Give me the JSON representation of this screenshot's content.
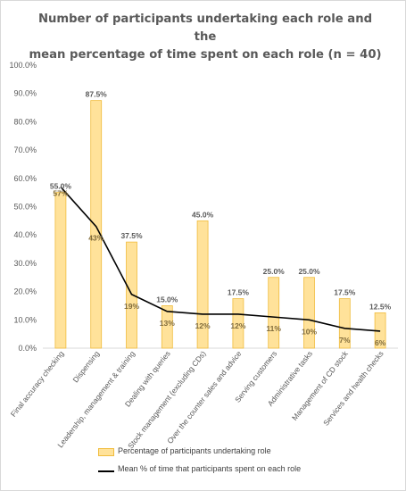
{
  "chart_data": {
    "type": "bar",
    "title_line1": "Number of participants undertaking each role and the",
    "title_line2": "mean percentage of time spent on each role (n = 40)",
    "categories": [
      "Final accuracy checking",
      "Dispensing",
      "Leadership, management  & training",
      "Dealing with queries",
      "Stock management (excluding CDs)",
      "Over the counter sales and advice",
      "Serving customers",
      "Administrative tasks",
      "Management of CD stock",
      "Services and health checks"
    ],
    "series": [
      {
        "name": "Percentage of participants undertaking role",
        "type": "bar",
        "values": [
          55.0,
          87.5,
          37.5,
          15.0,
          45.0,
          17.5,
          25.0,
          25.0,
          17.5,
          12.5
        ],
        "labels": [
          "55.0%",
          "87.5%",
          "37.5%",
          "15.0%",
          "45.0%",
          "17.5%",
          "25.0%",
          "25.0%",
          "17.5%",
          "12.5%"
        ],
        "color": "#ffe29a",
        "border_color": "#f0bc3c"
      },
      {
        "name": "Mean % of time that participants spent on each role",
        "type": "line",
        "values": [
          57,
          43,
          19,
          13,
          12,
          12,
          11,
          10,
          7,
          6
        ],
        "labels": [
          "57%",
          "43%",
          "19%",
          "13%",
          "12%",
          "12%",
          "11%",
          "10%",
          "7%",
          "6%"
        ],
        "color": "#000000"
      }
    ],
    "y_ticks": [
      "0.0%",
      "10.0%",
      "20.0%",
      "30.0%",
      "40.0%",
      "50.0%",
      "60.0%",
      "70.0%",
      "80.0%",
      "90.0%",
      "100.0%"
    ],
    "ylim": [
      0,
      100
    ],
    "grid": false,
    "legend_position": "bottom"
  }
}
